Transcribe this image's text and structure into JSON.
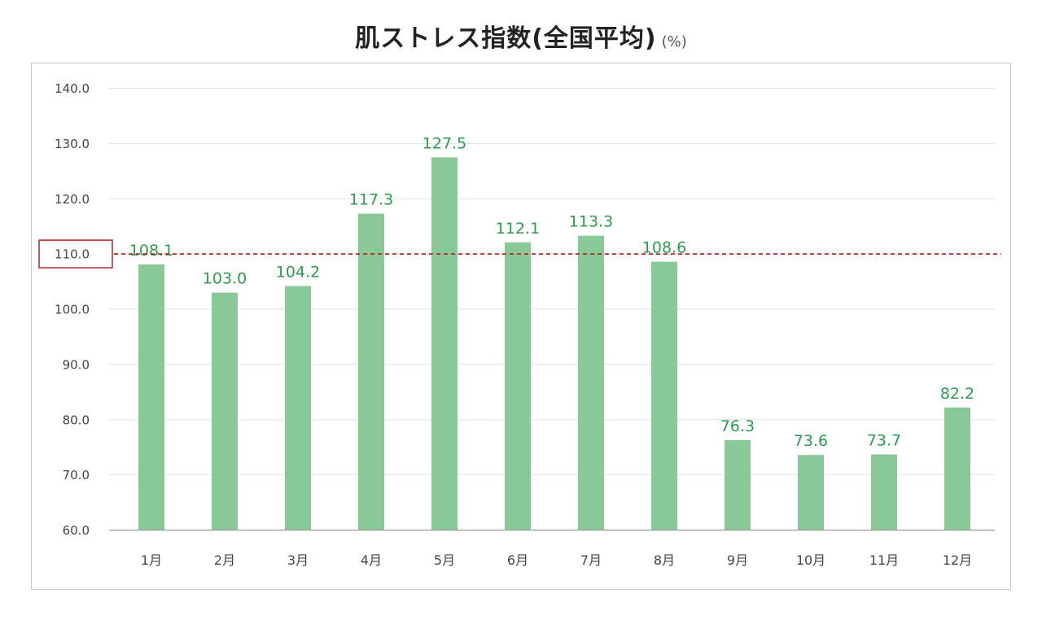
{
  "header": {
    "title": "肌ストレス指数(全国平均)",
    "unit": "(%)"
  },
  "chart_data": {
    "type": "bar",
    "title": "肌ストレス指数(全国平均)",
    "unit": "(%)",
    "categories": [
      "1月",
      "2月",
      "3月",
      "4月",
      "5月",
      "6月",
      "7月",
      "8月",
      "9月",
      "10月",
      "11月",
      "12月"
    ],
    "values": [
      108.1,
      103.0,
      104.2,
      117.3,
      127.5,
      112.1,
      113.3,
      108.6,
      76.3,
      73.6,
      73.7,
      82.2
    ],
    "value_labels": [
      "108.1",
      "103.0",
      "104.2",
      "117.3",
      "127.5",
      "112.1",
      "113.3",
      "108.6",
      "76.3",
      "73.6",
      "73.7",
      "82.2"
    ],
    "ylim": [
      60,
      140
    ],
    "yticks": [
      60,
      70,
      80,
      90,
      100,
      110,
      120,
      130,
      140
    ],
    "ytick_labels": [
      "60.0",
      "70.0",
      "80.0",
      "90.0",
      "100.0",
      "110.0",
      "120.0",
      "130.0",
      "140.0"
    ],
    "reference_line": {
      "value": 110,
      "style": "dashed",
      "color": "#b22222"
    },
    "highlighted_tick": "110.0",
    "grid": true,
    "legend": "none",
    "colors": {
      "bar": "#88c997",
      "label": "#2a9d4a",
      "grid": "#e2e2e2",
      "axis": "#9a9a9a",
      "tick_text": "#444444",
      "highlight_box": "#b22222"
    }
  }
}
